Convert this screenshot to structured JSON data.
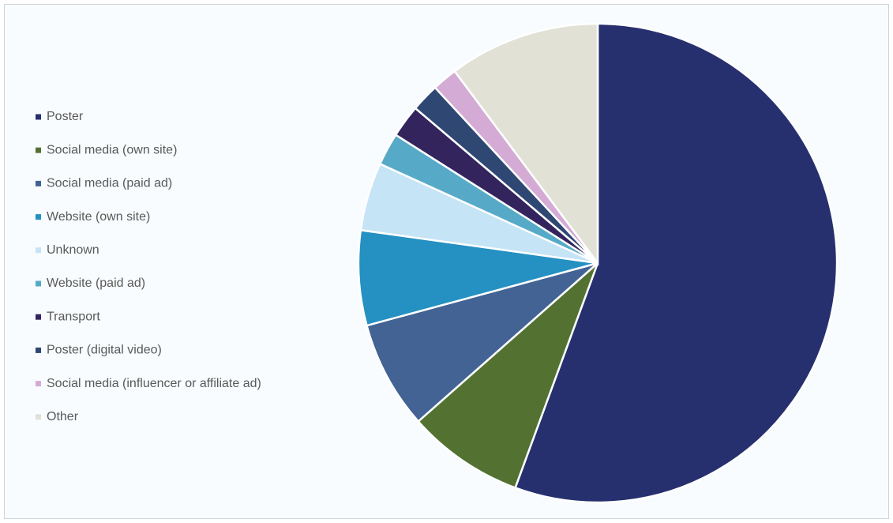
{
  "chart_data": {
    "type": "pie",
    "categories": [
      "Poster",
      "Social media (own site)",
      "Social media (paid ad)",
      "Website (own site)",
      "Unknown",
      "Website (paid ad)",
      "Transport",
      "Poster (digital video)",
      "Social media (influencer or affiliate ad)",
      "Other"
    ],
    "values": [
      55.6,
      7.9,
      7.3,
      6.4,
      4.6,
      2.2,
      2.2,
      1.9,
      1.7,
      10.2
    ],
    "colors": [
      "#27306e",
      "#537232",
      "#426394",
      "#2590c2",
      "#c5e4f6",
      "#57aac7",
      "#33245e",
      "#2f4873",
      "#d4abd4",
      "#e2e1d6"
    ],
    "legend": "left"
  }
}
